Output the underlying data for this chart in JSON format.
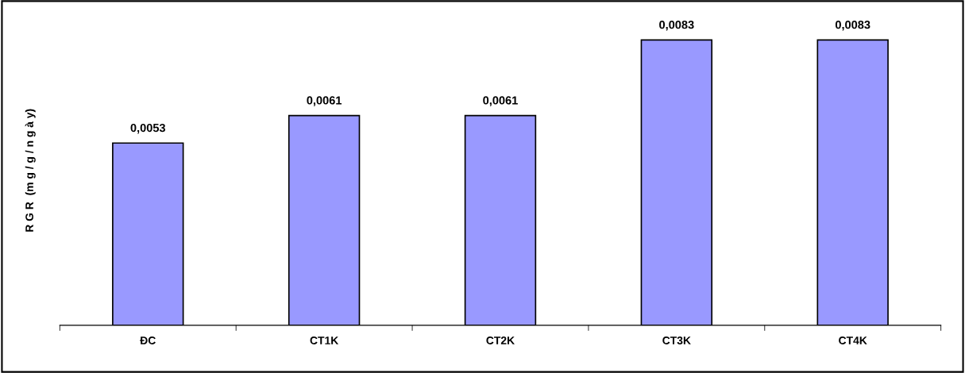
{
  "chart_data": {
    "type": "bar",
    "ylabel": "R G R  (m g / g / n g à y)",
    "categories": [
      "ĐC",
      "CT1K",
      "CT2K",
      "CT3K",
      "CT4K"
    ],
    "values": [
      0.0053,
      0.0061,
      0.0061,
      0.0083,
      0.0083
    ],
    "value_labels": [
      "0,0053",
      "0,0061",
      "0,0061",
      "0,0083",
      "0,0083"
    ],
    "color": "#9999ff",
    "grid": false,
    "legend": false
  }
}
